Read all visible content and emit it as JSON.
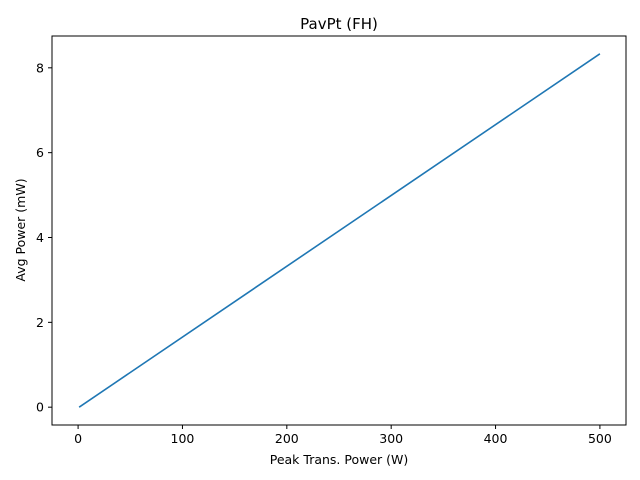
{
  "chart_data": {
    "type": "line",
    "title": "PavPt (FH)",
    "xlabel": "Peak Trans. Power (W)",
    "ylabel": "Avg Power (mW)",
    "xlim": [
      -25,
      525
    ],
    "ylim": [
      -0.42,
      8.75
    ],
    "xticks": [
      0,
      100,
      200,
      300,
      400,
      500
    ],
    "yticks": [
      0,
      2,
      4,
      6,
      8
    ],
    "grid": false,
    "series": [
      {
        "color": "#1f77b4",
        "x": [
          1,
          500
        ],
        "y": [
          0.0,
          8.33
        ]
      }
    ]
  }
}
